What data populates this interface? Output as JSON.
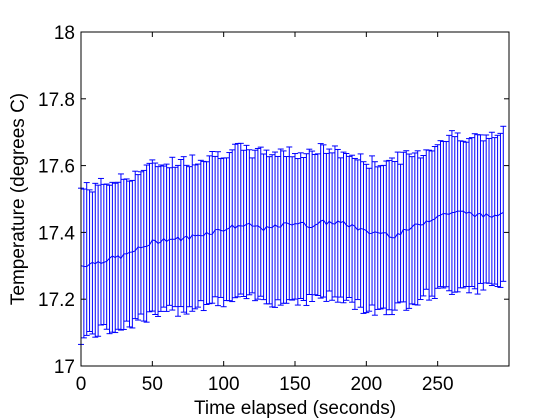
{
  "chart_data": {
    "type": "line",
    "xlabel": "Time elapsed (seconds)",
    "ylabel": "Temperature (degrees C)",
    "xlim": [
      0,
      300
    ],
    "ylim": [
      17,
      18
    ],
    "xticks": [
      0,
      50,
      100,
      150,
      200,
      250
    ],
    "xtick_labels": [
      "0",
      "50",
      "100",
      "150",
      "200",
      "250"
    ],
    "yticks": [
      17,
      17.2,
      17.4,
      17.6,
      17.8,
      18
    ],
    "ytick_labels": [
      "17",
      "17.2",
      "17.4",
      "17.6",
      "17.8",
      "18"
    ],
    "grid": false,
    "series": [
      {
        "color": "#0000ff",
        "style": "line with vertical error bars",
        "x": [
          0,
          10,
          20,
          30,
          40,
          50,
          60,
          70,
          80,
          90,
          100,
          110,
          120,
          130,
          140,
          150,
          160,
          170,
          180,
          190,
          200,
          210,
          220,
          230,
          240,
          250,
          260,
          270,
          280,
          290,
          297
        ],
        "mean": [
          17.3,
          17.31,
          17.32,
          17.33,
          17.35,
          17.37,
          17.38,
          17.38,
          17.39,
          17.4,
          17.41,
          17.42,
          17.42,
          17.41,
          17.42,
          17.43,
          17.42,
          17.43,
          17.43,
          17.42,
          17.4,
          17.4,
          17.39,
          17.41,
          17.43,
          17.45,
          17.46,
          17.46,
          17.45,
          17.45,
          17.47
        ],
        "upper": [
          17.53,
          17.54,
          17.55,
          17.56,
          17.58,
          17.6,
          17.61,
          17.61,
          17.62,
          17.63,
          17.64,
          17.65,
          17.64,
          17.64,
          17.64,
          17.64,
          17.64,
          17.65,
          17.64,
          17.63,
          17.61,
          17.61,
          17.62,
          17.63,
          17.64,
          17.67,
          17.69,
          17.69,
          17.68,
          17.69,
          17.7
        ],
        "lower": [
          17.08,
          17.1,
          17.11,
          17.12,
          17.14,
          17.15,
          17.16,
          17.17,
          17.18,
          17.19,
          17.19,
          17.2,
          17.2,
          17.2,
          17.19,
          17.2,
          17.2,
          17.21,
          17.2,
          17.19,
          17.17,
          17.17,
          17.17,
          17.19,
          17.21,
          17.22,
          17.23,
          17.24,
          17.23,
          17.24,
          17.25
        ]
      }
    ]
  }
}
